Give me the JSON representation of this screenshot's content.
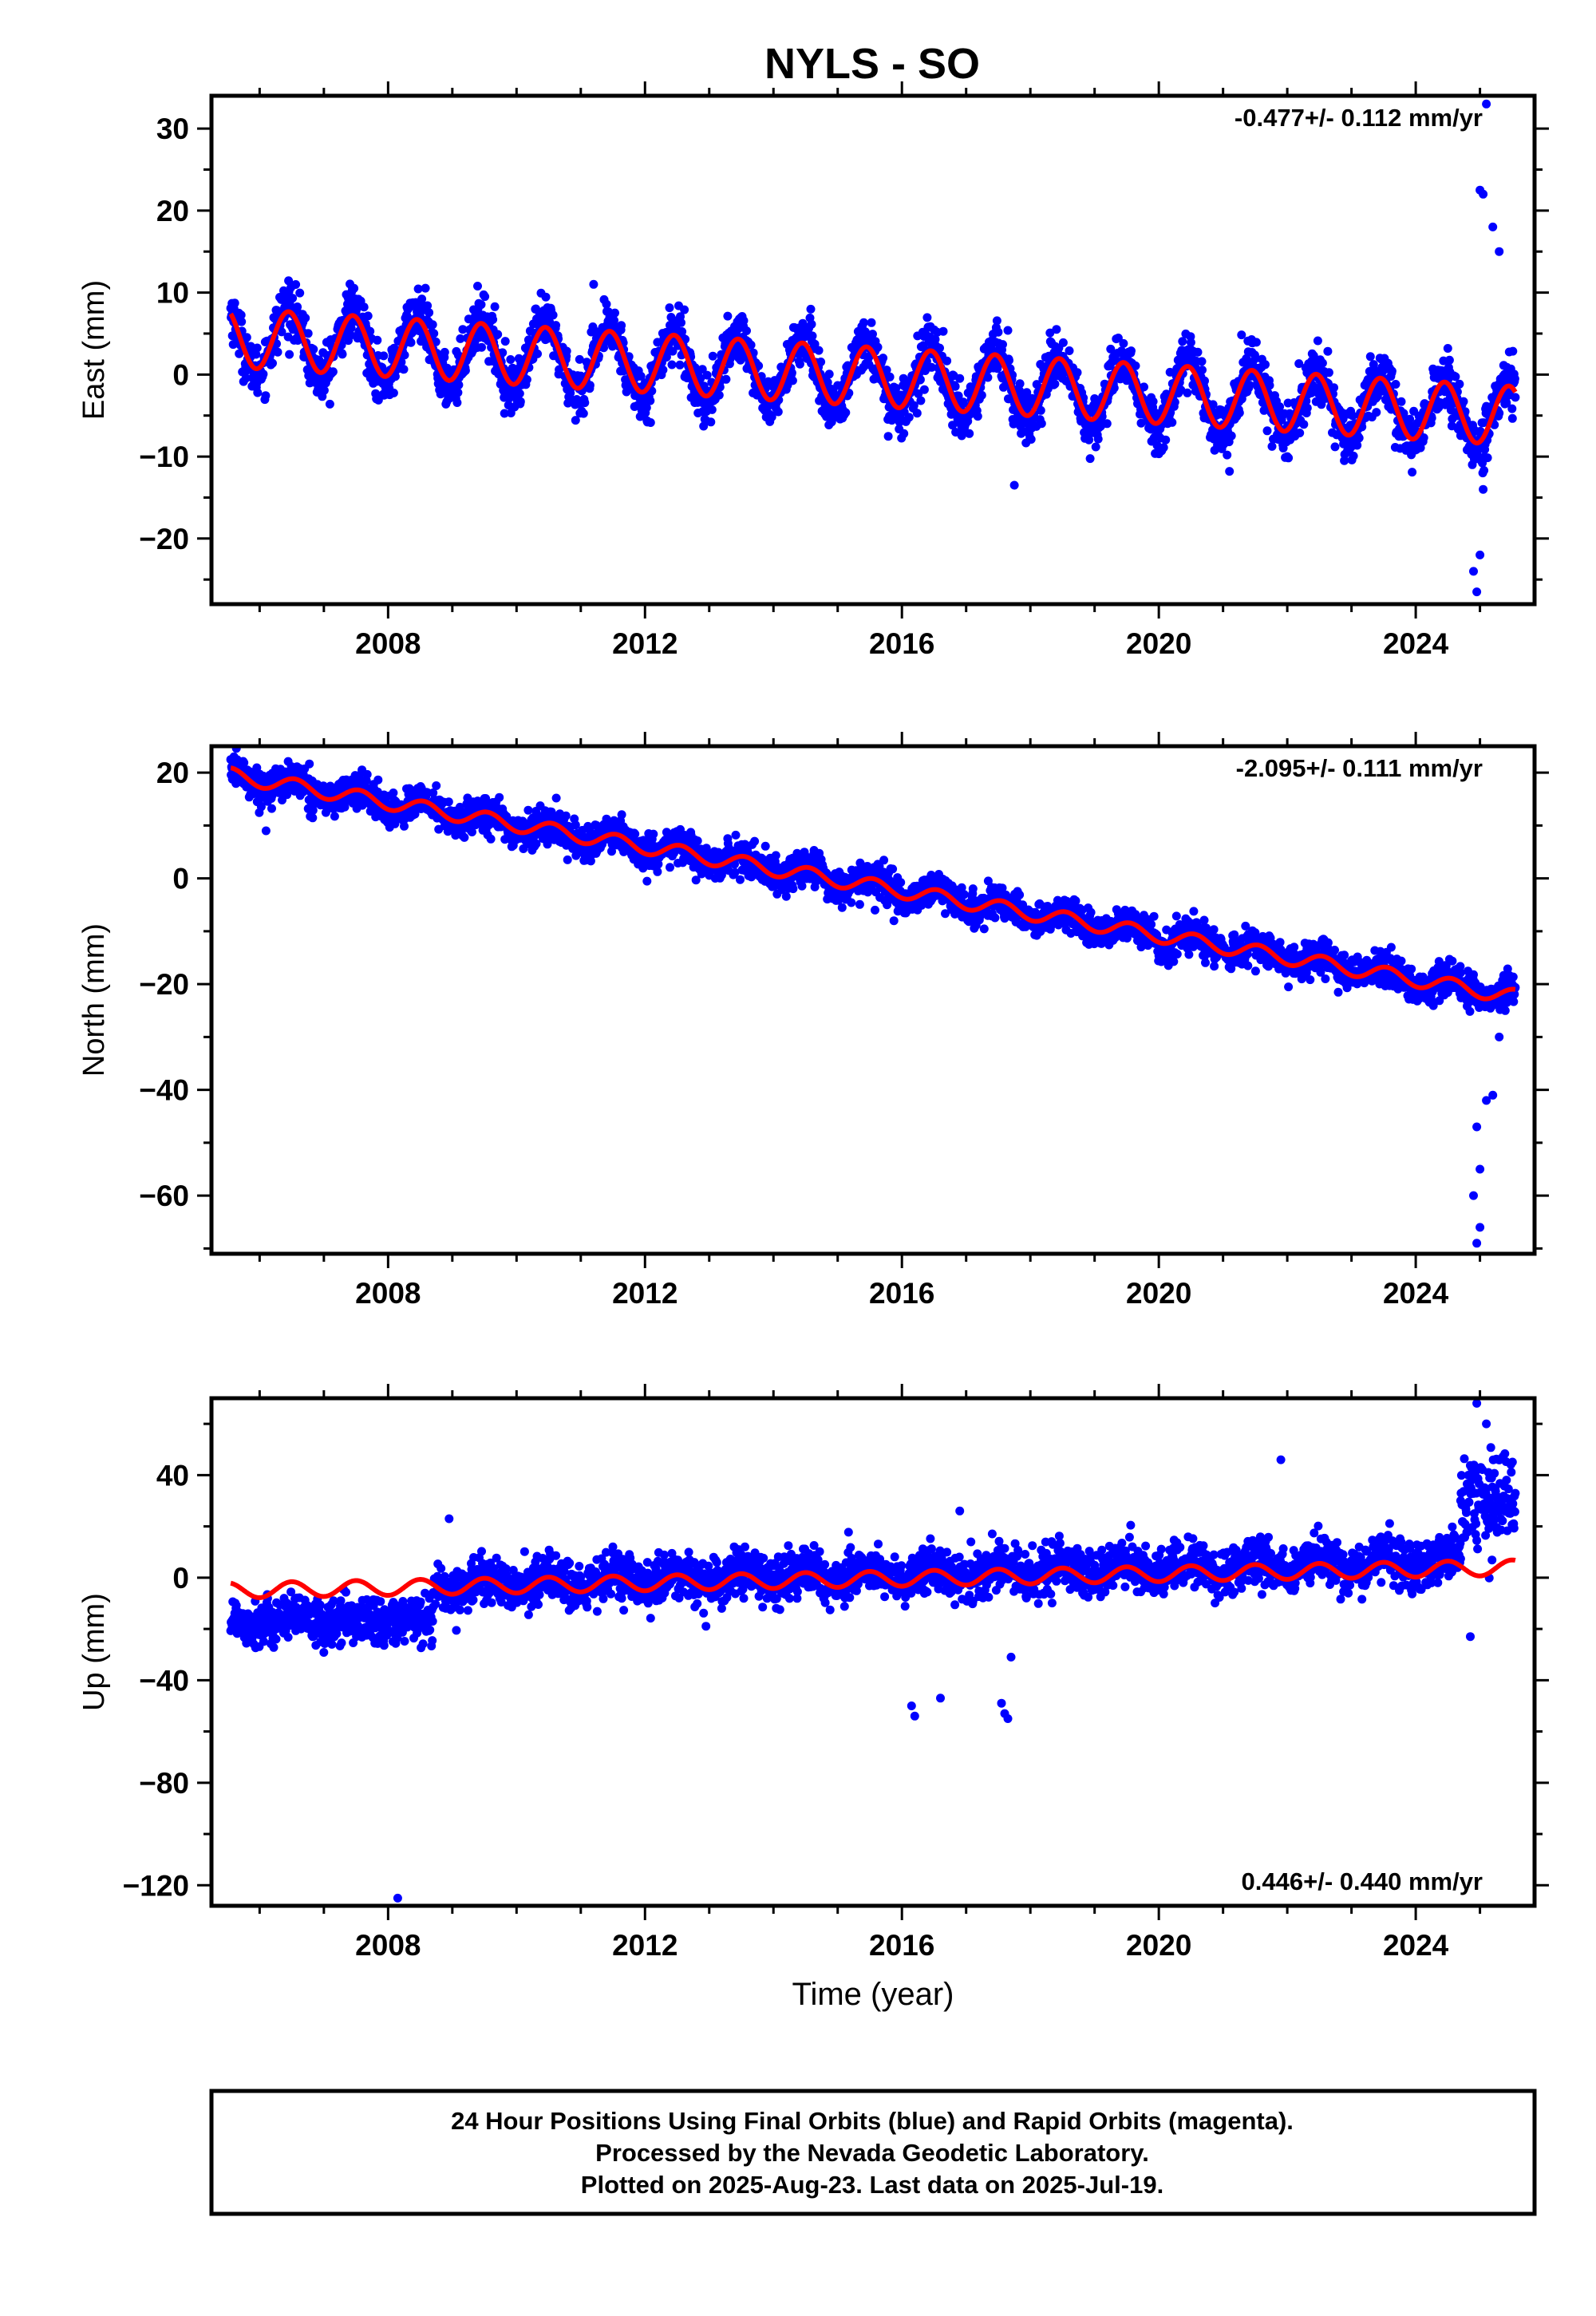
{
  "title": "NYLS - SO",
  "footer": {
    "lines": [
      "24 Hour Positions Using Final Orbits (blue) and Rapid Orbits (magenta).",
      "Processed by the Nevada Geodetic Laboratory.",
      "Plotted on 2025-Aug-23. Last data on 2025-Jul-19."
    ]
  },
  "colors": {
    "data": "#0000ff",
    "model": "#ff0000",
    "frame": "#000000"
  },
  "chart_data": [
    {
      "type": "scatter",
      "ylabel": "East (mm)",
      "xlabel": "",
      "xlim": [
        2005.25,
        2025.85
      ],
      "ylim": [
        -28,
        34
      ],
      "xticks": [
        2008,
        2012,
        2016,
        2020,
        2024
      ],
      "yticks": [
        -20,
        -10,
        0,
        10,
        20,
        30
      ],
      "rate_label": "-0.477+/- 0.112 mm/yr",
      "rate_position": "top-right",
      "series": [
        {
          "kind": "points",
          "x_range": [
            2005.55,
            2025.55
          ],
          "trend": {
            "x0": 2005.55,
            "y0": 4.5,
            "slope": -0.477
          },
          "annual_amplitude": 4.0,
          "annual_peak_phase": 0.45,
          "scatter_sd": 1.6
        },
        {
          "kind": "model_line",
          "x_range": [
            2005.55,
            2025.55
          ],
          "trend": {
            "x0": 2005.55,
            "y0": 4.5,
            "slope": -0.477
          },
          "annual_amplitude": 3.6,
          "annual_peak_phase": 0.45
        }
      ],
      "outliers": [
        [
          2017.75,
          -13.5
        ],
        [
          2021.1,
          -11.8
        ],
        [
          2024.9,
          -24.0
        ],
        [
          2024.95,
          -26.5
        ],
        [
          2025.0,
          -22.0
        ],
        [
          2025.05,
          -14.0
        ],
        [
          2025.0,
          22.5
        ],
        [
          2025.05,
          22.0
        ],
        [
          2025.1,
          33.0
        ],
        [
          2025.2,
          18.0
        ],
        [
          2025.3,
          15.0
        ],
        [
          2011.2,
          11.0
        ]
      ]
    },
    {
      "type": "scatter",
      "ylabel": "North (mm)",
      "xlabel": "",
      "xlim": [
        2005.25,
        2025.85
      ],
      "ylim": [
        -71,
        25
      ],
      "xticks": [
        2008,
        2012,
        2016,
        2020,
        2024
      ],
      "yticks": [
        -60,
        -40,
        -20,
        0,
        20
      ],
      "rate_label": "-2.095+/- 0.111 mm/yr",
      "rate_position": "top-right",
      "series": [
        {
          "kind": "points",
          "x_range": [
            2005.55,
            2025.55
          ],
          "trend": {
            "x0": 2005.55,
            "y0": 19.5,
            "slope": -2.095
          },
          "annual_amplitude": 1.4,
          "annual_peak_phase": 0.55,
          "scatter_sd": 1.6
        },
        {
          "kind": "model_line",
          "x_range": [
            2005.55,
            2025.55
          ],
          "trend": {
            "x0": 2005.55,
            "y0": 19.5,
            "slope": -2.095
          },
          "annual_amplitude": 1.4,
          "annual_peak_phase": 0.55
        }
      ],
      "outliers": [
        [
          2024.95,
          -69.0
        ],
        [
          2025.0,
          -66.0
        ],
        [
          2024.9,
          -60.0
        ],
        [
          2025.0,
          -55.0
        ],
        [
          2024.95,
          -47.0
        ],
        [
          2025.1,
          -42.0
        ],
        [
          2025.2,
          -41.0
        ],
        [
          2025.3,
          -30.0
        ],
        [
          2005.6,
          23.0
        ],
        [
          2005.7,
          22.0
        ],
        [
          2006.1,
          9.0
        ]
      ]
    },
    {
      "type": "scatter",
      "ylabel": "Up (mm)",
      "xlabel": "Time (year)",
      "xlim": [
        2005.25,
        2025.85
      ],
      "ylim": [
        -128,
        70
      ],
      "xticks": [
        2008,
        2012,
        2016,
        2020,
        2024
      ],
      "yticks": [
        -120,
        -80,
        -40,
        0,
        40
      ],
      "rate_label": "0.446+/- 0.440 mm/yr",
      "rate_position": "bottom-right",
      "series": [
        {
          "kind": "points",
          "segment": 1,
          "x_range": [
            2005.55,
            2008.7
          ],
          "trend": {
            "x0": 2005.55,
            "y0": -17.0,
            "slope": 0.0
          },
          "annual_amplitude": 1.5,
          "annual_peak_phase": 0.5,
          "scatter_sd": 4.5
        },
        {
          "kind": "points",
          "segment": 2,
          "x_range": [
            2008.7,
            2024.7
          ],
          "trend": {
            "x0": 2005.55,
            "y0": -5.0,
            "slope": 0.6
          },
          "annual_amplitude": 3.0,
          "annual_peak_phase": 0.5,
          "scatter_sd": 4.5
        },
        {
          "kind": "points",
          "segment": 3,
          "x_range": [
            2024.7,
            2025.55
          ],
          "trend": {
            "x0": 2024.7,
            "y0": 30.0,
            "slope": 0.0
          },
          "annual_amplitude": 0.0,
          "annual_peak_phase": 0.5,
          "scatter_sd": 9.0
        },
        {
          "kind": "model_line",
          "x_range": [
            2005.55,
            2025.55
          ],
          "trend": {
            "x0": 2005.55,
            "y0": -5.0,
            "slope": 0.446
          },
          "annual_amplitude": 3.0,
          "annual_peak_phase": 0.5
        }
      ],
      "outliers": [
        [
          2008.15,
          -125.0
        ],
        [
          2016.15,
          -50.0
        ],
        [
          2016.2,
          -54.0
        ],
        [
          2016.6,
          -47.0
        ],
        [
          2017.55,
          -49.0
        ],
        [
          2017.6,
          -53.0
        ],
        [
          2017.65,
          -55.0
        ],
        [
          2017.7,
          -31.0
        ],
        [
          2021.9,
          46.0
        ],
        [
          2024.85,
          -23.0
        ],
        [
          2024.95,
          68.0
        ],
        [
          2025.1,
          60.0
        ],
        [
          2016.9,
          26.0
        ],
        [
          2008.95,
          23.0
        ]
      ]
    }
  ]
}
